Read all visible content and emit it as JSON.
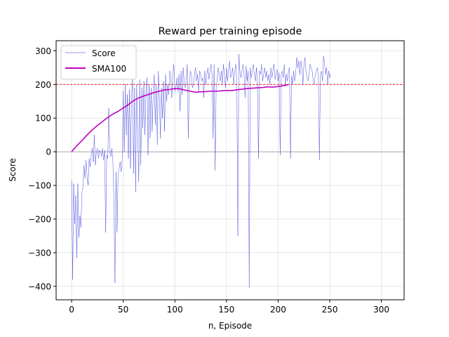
{
  "chart_data": {
    "type": "line",
    "title": "Reward per training episode",
    "xlabel": "n, Episode",
    "ylabel": "Score",
    "xlim": [
      -15,
      322
    ],
    "ylim": [
      -440,
      330
    ],
    "xticks": [
      0,
      50,
      100,
      150,
      200,
      250,
      300
    ],
    "yticks": [
      -400,
      -300,
      -200,
      -100,
      0,
      100,
      200,
      300
    ],
    "grid": true,
    "legend_position": "top-left",
    "reference_lines": [
      {
        "y": 200,
        "color": "#ff0000",
        "style": "dashed"
      },
      {
        "y": 0,
        "color": "#000000",
        "style": "dotted"
      }
    ],
    "series": [
      {
        "name": "Score",
        "color": "#3333dd",
        "x_start": 0,
        "values": [
          -85,
          -380,
          -95,
          -215,
          -130,
          -315,
          -95,
          -255,
          -190,
          -225,
          -120,
          -105,
          -40,
          -80,
          -25,
          -75,
          -100,
          -20,
          -45,
          -10,
          10,
          -30,
          50,
          -40,
          0,
          10,
          -20,
          5,
          0,
          -15,
          10,
          -25,
          5,
          -240,
          -10,
          -20,
          130,
          0,
          -15,
          10,
          -30,
          -150,
          -390,
          -60,
          -240,
          -70,
          -50,
          -30,
          -60,
          -20,
          180,
          0,
          200,
          50,
          170,
          -20,
          185,
          -50,
          160,
          220,
          -65,
          190,
          -120,
          200,
          60,
          -90,
          215,
          -40,
          190,
          70,
          210,
          50,
          180,
          220,
          -10,
          200,
          40,
          190,
          60,
          170,
          230,
          80,
          200,
          20,
          240,
          160,
          40,
          190,
          100,
          210,
          60,
          230,
          150,
          200,
          170,
          240,
          230,
          160,
          230,
          260,
          180,
          190,
          220,
          180,
          230,
          120,
          240,
          170,
          250,
          210,
          190,
          210,
          260,
          40,
          200,
          240,
          230,
          190,
          200,
          230,
          250,
          210,
          230,
          180,
          240,
          230,
          210,
          220,
          160,
          240,
          200,
          230,
          250,
          215,
          240,
          260,
          230,
          40,
          260,
          -55,
          190,
          220,
          250,
          230,
          210,
          240,
          200,
          260,
          230,
          190,
          250,
          210,
          240,
          270,
          220,
          230,
          250,
          200,
          240,
          260,
          210,
          -250,
          290,
          240,
          220,
          240,
          260,
          230,
          160,
          255,
          210,
          240,
          -405,
          250,
          220,
          240,
          260,
          230,
          210,
          250,
          200,
          -20,
          240,
          230,
          260,
          210,
          230,
          250,
          220,
          240,
          210,
          230,
          200,
          250,
          220,
          240,
          260,
          215,
          230,
          245,
          210,
          235,
          -10,
          230,
          240,
          220,
          260,
          200,
          230,
          210,
          240,
          250,
          -20,
          225,
          200,
          240,
          210,
          230,
          280,
          250,
          270,
          230,
          270,
          250,
          200,
          260,
          280,
          240,
          220,
          210,
          230,
          260,
          250,
          240,
          210,
          200,
          230,
          240,
          250,
          220,
          -25,
          230,
          240,
          210,
          285,
          260,
          230,
          250,
          200,
          240,
          220,
          230
        ],
        "sampled_every": 1
      },
      {
        "name": "SMA100",
        "color": "#c000c0",
        "x": [
          0,
          5,
          10,
          15,
          20,
          25,
          30,
          35,
          40,
          45,
          50,
          55,
          60,
          65,
          70,
          75,
          80,
          85,
          90,
          95,
          100,
          105,
          110,
          115,
          120,
          125,
          130,
          135,
          140,
          145,
          150,
          155,
          160,
          165,
          170,
          175,
          180,
          185,
          190,
          195,
          200,
          205,
          210
        ],
        "values": [
          0,
          18,
          33,
          50,
          65,
          78,
          90,
          102,
          112,
          120,
          130,
          140,
          152,
          160,
          166,
          171,
          176,
          180,
          184,
          185,
          188,
          187,
          183,
          180,
          177,
          178,
          179,
          180,
          180,
          181,
          182,
          182,
          184,
          186,
          188,
          189,
          190,
          191,
          193,
          192,
          194,
          196,
          200
        ]
      }
    ]
  }
}
